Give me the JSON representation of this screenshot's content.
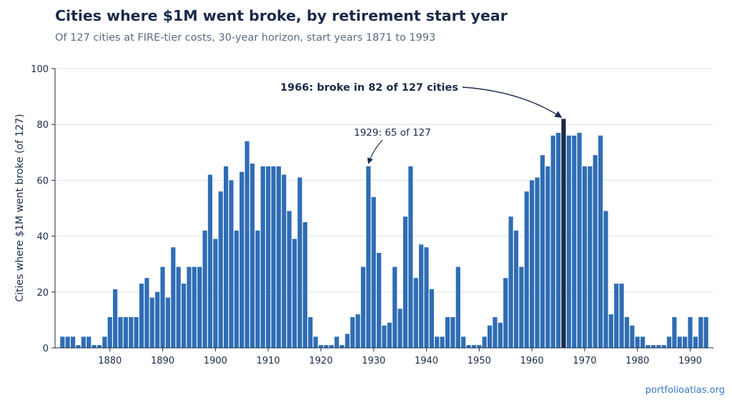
{
  "title": "Cities where $1M went broke, by retirement start year",
  "subtitle": "Of 127 cities at FIRE-tier costs, 30-year horizon, start years 1871 to 1993",
  "source": "portfolioatlas.org",
  "colors": {
    "bar": "#2f6db5",
    "highlight": "#1b2a4a",
    "grid": "#e3e6ea",
    "axis": "#1b2a4a",
    "title": "#1b2a4a",
    "subtitle": "#5a6b82",
    "source": "#3a78c2"
  },
  "chart_data": {
    "type": "bar",
    "ylabel": "Cities where $1M went broke (of 127)",
    "xlabel": "",
    "ylim": [
      0,
      100
    ],
    "yticks": [
      0,
      20,
      40,
      60,
      80,
      100
    ],
    "xticks": [
      1880,
      1890,
      1900,
      1910,
      1920,
      1930,
      1940,
      1950,
      1960,
      1970,
      1980,
      1990
    ],
    "grid": "horizontal",
    "highlight_year": 1966,
    "x": [
      1871,
      1872,
      1873,
      1874,
      1875,
      1876,
      1877,
      1878,
      1879,
      1880,
      1881,
      1882,
      1883,
      1884,
      1885,
      1886,
      1887,
      1888,
      1889,
      1890,
      1891,
      1892,
      1893,
      1894,
      1895,
      1896,
      1897,
      1898,
      1899,
      1900,
      1901,
      1902,
      1903,
      1904,
      1905,
      1906,
      1907,
      1908,
      1909,
      1910,
      1911,
      1912,
      1913,
      1914,
      1915,
      1916,
      1917,
      1918,
      1919,
      1920,
      1921,
      1922,
      1923,
      1924,
      1925,
      1926,
      1927,
      1928,
      1929,
      1930,
      1931,
      1932,
      1933,
      1934,
      1935,
      1936,
      1937,
      1938,
      1939,
      1940,
      1941,
      1942,
      1943,
      1944,
      1945,
      1946,
      1947,
      1948,
      1949,
      1950,
      1951,
      1952,
      1953,
      1954,
      1955,
      1956,
      1957,
      1958,
      1959,
      1960,
      1961,
      1962,
      1963,
      1964,
      1965,
      1966,
      1967,
      1968,
      1969,
      1970,
      1971,
      1972,
      1973,
      1974,
      1975,
      1976,
      1977,
      1978,
      1979,
      1980,
      1981,
      1982,
      1983,
      1984,
      1985,
      1986,
      1987,
      1988,
      1989,
      1990,
      1991,
      1992,
      1993
    ],
    "values": [
      4,
      4,
      4,
      1,
      4,
      4,
      1,
      1,
      4,
      11,
      21,
      11,
      11,
      11,
      11,
      23,
      25,
      18,
      20,
      29,
      18,
      36,
      29,
      23,
      29,
      29,
      29,
      42,
      62,
      39,
      56,
      65,
      60,
      42,
      63,
      74,
      66,
      42,
      65,
      65,
      65,
      65,
      62,
      49,
      39,
      61,
      45,
      11,
      4,
      1,
      1,
      1,
      4,
      1,
      5,
      11,
      12,
      29,
      65,
      54,
      34,
      8,
      9,
      29,
      14,
      47,
      65,
      25,
      37,
      36,
      21,
      4,
      4,
      11,
      11,
      29,
      4,
      1,
      1,
      1,
      4,
      8,
      11,
      9,
      25,
      47,
      42,
      29,
      56,
      60,
      61,
      69,
      65,
      76,
      77,
      82,
      76,
      76,
      77,
      65,
      65,
      69,
      76,
      49,
      12,
      23,
      23,
      11,
      8,
      4,
      4,
      1,
      1,
      1,
      1,
      4,
      11,
      4,
      4,
      11,
      4,
      11,
      11
    ],
    "annotations": [
      {
        "text": "1966: broke in 82 of 127 cities",
        "x": 1966,
        "y": 82,
        "bold": true
      },
      {
        "text": "1929: 65 of 127",
        "x": 1929,
        "y": 65,
        "bold": false
      }
    ]
  }
}
